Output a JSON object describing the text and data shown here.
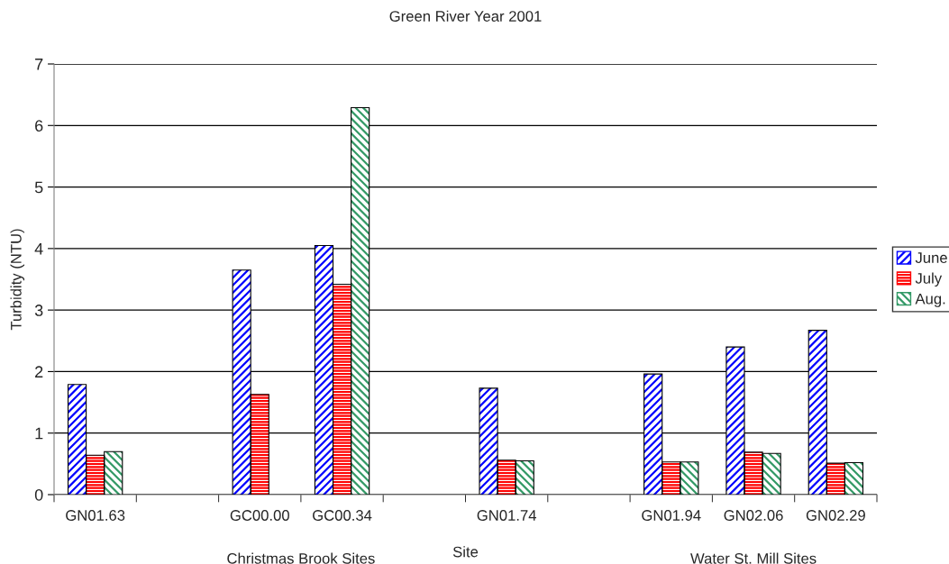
{
  "chart_data": {
    "type": "bar",
    "title": "Green River Year 2001",
    "xlabel": "Site",
    "ylabel": "Turbidity (NTU)",
    "categories": [
      "GN01.63",
      null,
      "GC00.00",
      "GC00.34",
      null,
      "GN01.74",
      null,
      "GN01.94",
      "GN02.06",
      "GN02.29"
    ],
    "series": [
      {
        "name": "June",
        "color": "#0000ff",
        "values": [
          1.79,
          null,
          3.65,
          4.05,
          null,
          1.73,
          null,
          1.96,
          2.4,
          2.67
        ]
      },
      {
        "name": "July",
        "color": "#ff0000",
        "values": [
          0.64,
          null,
          1.63,
          3.42,
          null,
          0.56,
          null,
          0.53,
          0.69,
          0.51
        ]
      },
      {
        "name": "Aug.",
        "color": "#339966",
        "values": [
          0.7,
          null,
          null,
          6.29,
          null,
          0.55,
          null,
          0.53,
          0.67,
          0.52
        ]
      }
    ],
    "annotations": [
      "Christmas Brook Sites",
      "Water St. Mill Sites"
    ],
    "ylim": [
      0,
      7
    ],
    "yticks": [
      0,
      1,
      2,
      3,
      4,
      5,
      6,
      7
    ],
    "grid": "y",
    "legend": "right"
  }
}
